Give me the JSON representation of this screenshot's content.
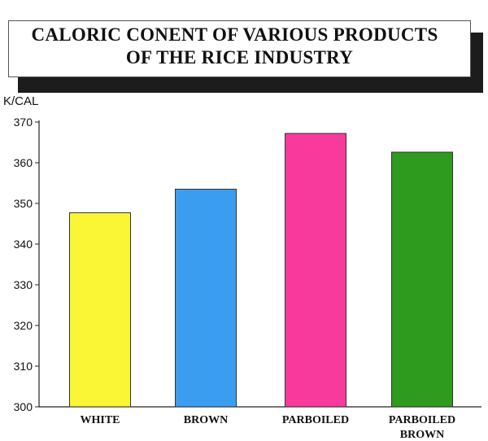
{
  "chart_data": {
    "type": "bar",
    "title": "CALORIC CONENT OF VARIOUS PRODUCTS OF THE RICE INDUSTRY",
    "title_lines": [
      "CALORIC CONENT OF VARIOUS PRODUCTS",
      "OF THE RICE INDUSTRY"
    ],
    "ylabel": "K/CAL",
    "xlabel": "",
    "categories": [
      "WHITE",
      "BROWN",
      "PARBOILED",
      "PARBOILED BROWN"
    ],
    "category_lines": [
      [
        "WHITE"
      ],
      [
        "BROWN"
      ],
      [
        "PARBOILED"
      ],
      [
        "PARBOILED",
        "BROWN"
      ]
    ],
    "values": [
      347.7,
      353.5,
      367.2,
      362.6
    ],
    "colors": [
      "#fbf635",
      "#3b9df0",
      "#f73a9c",
      "#2e9a1e"
    ],
    "ylim": [
      300,
      370
    ],
    "yticks": [
      "300",
      "310",
      "320",
      "330",
      "340",
      "350",
      "360",
      "370"
    ],
    "grid": false,
    "legend": "none"
  }
}
